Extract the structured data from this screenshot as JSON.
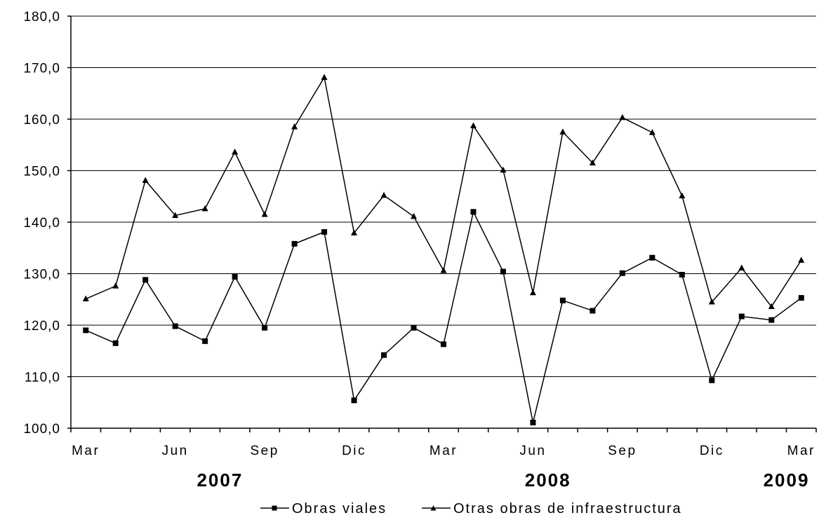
{
  "chart_data": {
    "type": "line",
    "title": "",
    "xlabel": "",
    "ylabel": "",
    "ylim": [
      100,
      180
    ],
    "y_ticks": [
      "100,0",
      "110,0",
      "120,0",
      "130,0",
      "140,0",
      "150,0",
      "160,0",
      "170,0",
      "180,0"
    ],
    "x_tick_labels": [
      "Mar",
      "Jun",
      "Sep",
      "Dic",
      "Mar",
      "Jun",
      "Sep",
      "Dic",
      "Mar"
    ],
    "years": [
      "2007",
      "2008",
      "2009"
    ],
    "x": [
      "2007-03",
      "2007-04",
      "2007-05",
      "2007-06",
      "2007-07",
      "2007-08",
      "2007-09",
      "2007-10",
      "2007-11",
      "2007-12",
      "2008-01",
      "2008-02",
      "2008-03",
      "2008-04",
      "2008-05",
      "2008-06",
      "2008-07",
      "2008-08",
      "2008-09",
      "2008-10",
      "2008-11",
      "2008-12",
      "2009-01",
      "2009-02",
      "2009-03"
    ],
    "grid": true,
    "legend_position": "bottom",
    "series": [
      {
        "name": "Obras viales",
        "marker": "square",
        "color": "#000000",
        "values": [
          119.0,
          116.5,
          128.8,
          119.8,
          116.9,
          129.4,
          119.5,
          135.8,
          138.1,
          105.4,
          114.2,
          119.5,
          116.3,
          142.0,
          130.4,
          101.1,
          124.8,
          122.8,
          130.1,
          133.1,
          129.8,
          109.3,
          121.7,
          121.0,
          125.3
        ]
      },
      {
        "name": "Otras obras de infraestructura",
        "marker": "triangle",
        "color": "#000000",
        "values": [
          125.1,
          127.6,
          148.1,
          141.3,
          142.6,
          153.6,
          141.5,
          158.5,
          168.1,
          137.9,
          145.2,
          141.1,
          130.6,
          158.7,
          150.1,
          126.3,
          157.5,
          151.5,
          160.3,
          157.4,
          145.1,
          124.5,
          131.1,
          123.6,
          132.6
        ]
      }
    ]
  }
}
